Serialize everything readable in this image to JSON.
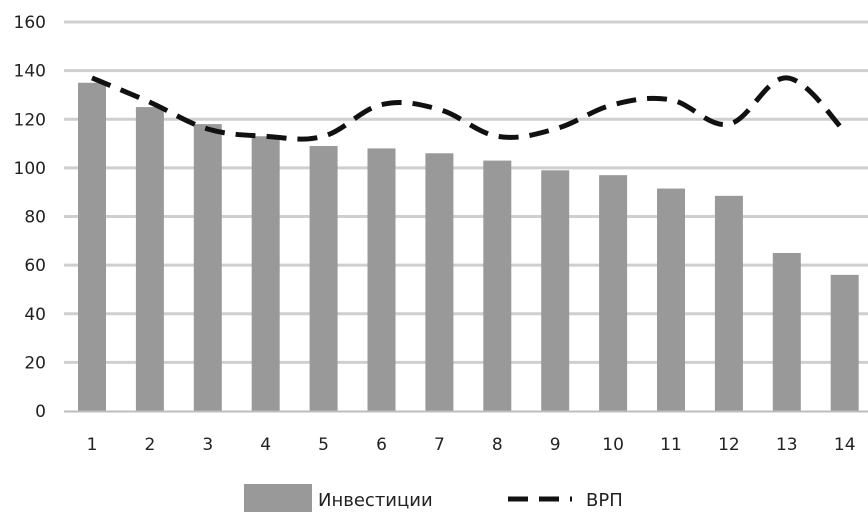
{
  "chart_data": {
    "type": "bar",
    "title": "",
    "xlabel": "",
    "ylabel": "",
    "ylim": [
      0,
      160
    ],
    "yticks": [
      0,
      20,
      40,
      60,
      80,
      100,
      120,
      140,
      160
    ],
    "grid": true,
    "legend_position": "bottom",
    "categories": [
      "1",
      "2",
      "3",
      "4",
      "5",
      "6",
      "7",
      "8",
      "9",
      "10",
      "11",
      "12",
      "13",
      "14"
    ],
    "series": [
      {
        "name": "Инвестиции",
        "type": "bar",
        "color": "#999999",
        "values": [
          135,
          125,
          118,
          113,
          109,
          108,
          106,
          103,
          99,
          97,
          91.5,
          88.5,
          65,
          56
        ]
      },
      {
        "name": "ВРП",
        "type": "line",
        "style": "dashed",
        "color": "#111111",
        "values": [
          137,
          127,
          116,
          113,
          113,
          126,
          124,
          113,
          116,
          126,
          128,
          118,
          137,
          115
        ]
      }
    ]
  }
}
